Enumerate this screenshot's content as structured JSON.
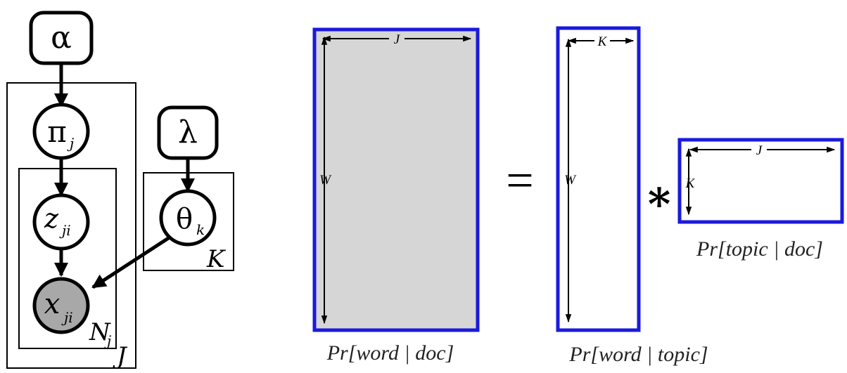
{
  "graphical_model": {
    "nodes": {
      "alpha": "α",
      "lambda": "λ",
      "pi": {
        "symbol": "π",
        "sub": "j"
      },
      "z": {
        "symbol": "z",
        "sub": "ji"
      },
      "theta": {
        "symbol": "θ",
        "sub": "k"
      },
      "x": {
        "symbol": "x",
        "sub": "ji"
      }
    },
    "plates": {
      "docs": "J",
      "words": {
        "symbol": "N",
        "sub": "j"
      },
      "topics": "K"
    },
    "colors": {
      "observed_fill": "#a8a8a8",
      "stroke": "#000000"
    }
  },
  "factorization": {
    "matrix_word_doc": {
      "caption": {
        "pre": "Pr[",
        "a": "word",
        "sep": " | ",
        "b": "doc",
        "post": "]"
      },
      "dim_w": "J",
      "dim_h": "W"
    },
    "equals": "=",
    "matrix_word_topic": {
      "caption": {
        "pre": "Pr[",
        "a": "word",
        "sep": " | ",
        "b": "topic",
        "post": "]"
      },
      "dim_w": "K",
      "dim_h": "W"
    },
    "times": "∗",
    "matrix_topic_doc": {
      "caption": {
        "pre": "Pr[",
        "a": "topic",
        "sep": " | ",
        "b": "doc",
        "post": "]"
      },
      "dim_w": "J",
      "dim_h": "K"
    },
    "colors": {
      "border": "#1a1adc",
      "filled": "#d6d6d6"
    }
  }
}
